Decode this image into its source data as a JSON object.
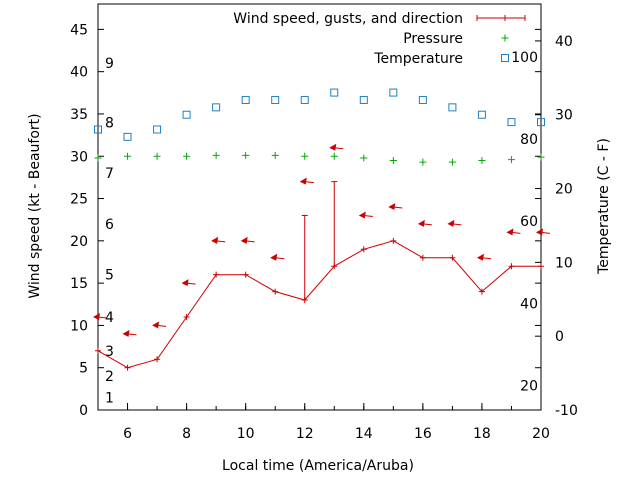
{
  "chart_data": {
    "type": "line",
    "x": [
      5,
      6,
      7,
      8,
      9,
      10,
      11,
      12,
      13,
      14,
      15,
      16,
      17,
      18,
      19,
      20
    ],
    "xlabel": "Local time (America/Aruba)",
    "xlim": [
      5,
      20
    ],
    "x_ticks": [
      "6",
      "8",
      "10",
      "12",
      "14",
      "16",
      "18",
      "20"
    ],
    "ylabel": "Wind speed (kt - Beaufort)",
    "ylim": [
      0,
      48
    ],
    "y_ticks": [
      "0",
      "5",
      "10",
      "15",
      "20",
      "25",
      "30",
      "35",
      "40",
      "45"
    ],
    "beaufort_labels": [
      "1",
      "2",
      "3",
      "4",
      "5",
      "6",
      "7",
      "8",
      "9"
    ],
    "beaufort_kt": [
      1.5,
      4,
      7,
      11,
      16,
      22,
      28,
      34,
      41
    ],
    "y2label": "Temperature (C - F)",
    "y2lim": [
      -10,
      45
    ],
    "y2_ticks": [
      "-10",
      "0",
      "10",
      "20",
      "30",
      "40"
    ],
    "fahrenheit_labels": [
      "20",
      "40",
      "60",
      "80",
      "100"
    ],
    "fahrenheit_temp_c": [
      -6.7,
      4.4,
      15.6,
      26.7,
      37.8
    ],
    "legend_position": "top-right",
    "series": [
      {
        "name": "Wind speed, gusts, and direction",
        "axis": "left",
        "color": "#cc0000",
        "values": [
          7,
          5,
          6,
          11,
          16,
          16,
          14,
          13,
          17,
          19,
          20,
          18,
          18,
          14,
          17,
          17
        ],
        "gusts": [
          null,
          null,
          null,
          null,
          null,
          null,
          null,
          23,
          27,
          null,
          null,
          null,
          null,
          null,
          null,
          null
        ],
        "direction_arrow_y": [
          11,
          9,
          10,
          15,
          20,
          20,
          18,
          27,
          31,
          23,
          24,
          22,
          22,
          18,
          21,
          21
        ]
      },
      {
        "name": "Pressure",
        "axis": "left",
        "color": "#00aa00",
        "values": [
          29.8,
          30,
          30,
          30,
          30.1,
          30.1,
          30.1,
          30,
          30,
          29.8,
          29.5,
          29.3,
          29.3,
          29.5,
          29.6,
          29.9
        ]
      },
      {
        "name": "Temperature",
        "axis": "right",
        "color": "#1f7fc8",
        "values": [
          28,
          27,
          28,
          30,
          31,
          32,
          32,
          32,
          33,
          32,
          33,
          32,
          31,
          30,
          29,
          29
        ]
      }
    ]
  }
}
